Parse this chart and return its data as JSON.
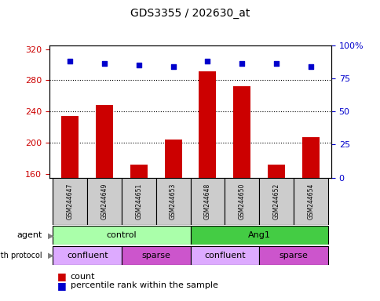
{
  "title": "GDS3355 / 202630_at",
  "samples": [
    "GSM244647",
    "GSM244649",
    "GSM244651",
    "GSM244653",
    "GSM244648",
    "GSM244650",
    "GSM244652",
    "GSM244654"
  ],
  "bar_values": [
    234,
    248,
    172,
    204,
    291,
    272,
    172,
    207
  ],
  "percentile_values": [
    88,
    86,
    85,
    84,
    88,
    86,
    86,
    84
  ],
  "ylim_left": [
    155,
    325
  ],
  "ylim_right": [
    0,
    100
  ],
  "yticks_left": [
    160,
    200,
    240,
    280,
    320
  ],
  "yticks_right": [
    0,
    25,
    50,
    75,
    100
  ],
  "right_tick_labels": [
    "0",
    "25",
    "50",
    "75",
    "100%"
  ],
  "bar_color": "#cc0000",
  "percentile_color": "#0000cc",
  "agent_groups": [
    {
      "label": "control",
      "start": 0,
      "end": 4,
      "color": "#aaffaa"
    },
    {
      "label": "Ang1",
      "start": 4,
      "end": 8,
      "color": "#44cc44"
    }
  ],
  "growth_groups": [
    {
      "label": "confluent",
      "start": 0,
      "end": 2,
      "color": "#ddaaff"
    },
    {
      "label": "sparse",
      "start": 2,
      "end": 4,
      "color": "#cc55cc"
    },
    {
      "label": "confluent",
      "start": 4,
      "end": 6,
      "color": "#ddaaff"
    },
    {
      "label": "sparse",
      "start": 6,
      "end": 8,
      "color": "#cc55cc"
    }
  ],
  "agent_label": "agent",
  "growth_label": "growth protocol",
  "legend_count_label": "count",
  "legend_percentile_label": "percentile rank within the sample",
  "background_color": "#ffffff",
  "sample_box_color": "#cccccc",
  "gridline_yticks": [
    200,
    240,
    280
  ]
}
